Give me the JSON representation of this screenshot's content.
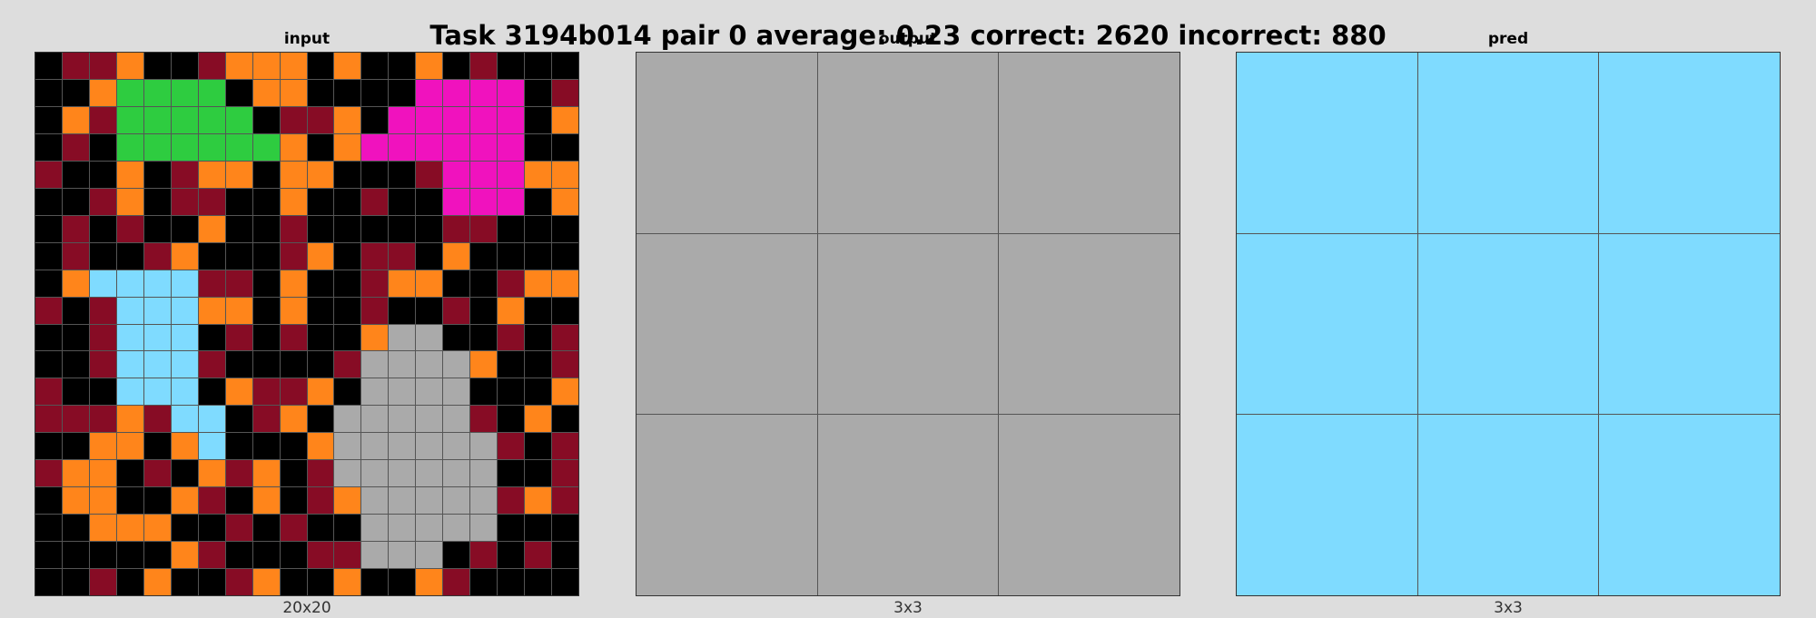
{
  "title": "Task 3194b014 pair 0 average: 0.23 correct: 2620 incorrect: 880",
  "palette": {
    "0": "#000000",
    "1": "#1e93ff",
    "2": "#f93c31",
    "3": "#2ecc40",
    "4": "#ffdc00",
    "5": "#aaaaaa",
    "6": "#f012be",
    "7": "#ff851b",
    "8": "#7fdbff",
    "9": "#870c25"
  },
  "panels": [
    {
      "title": "input",
      "footer": "20x20",
      "rows": 20,
      "cols": 20,
      "grid": [
        [
          0,
          9,
          9,
          7,
          0,
          0,
          9,
          7,
          7,
          7,
          0,
          7,
          0,
          0,
          7,
          0,
          9,
          0,
          0,
          0
        ],
        [
          0,
          0,
          7,
          3,
          3,
          3,
          3,
          0,
          7,
          7,
          0,
          0,
          0,
          0,
          6,
          6,
          6,
          6,
          0,
          9
        ],
        [
          0,
          7,
          9,
          3,
          3,
          3,
          3,
          3,
          0,
          9,
          9,
          7,
          0,
          6,
          6,
          6,
          6,
          6,
          0,
          7
        ],
        [
          0,
          9,
          0,
          3,
          3,
          3,
          3,
          3,
          3,
          7,
          0,
          7,
          6,
          6,
          6,
          6,
          6,
          6,
          0,
          0
        ],
        [
          9,
          0,
          0,
          7,
          0,
          9,
          7,
          7,
          0,
          7,
          7,
          0,
          0,
          0,
          9,
          6,
          6,
          6,
          7,
          7
        ],
        [
          0,
          0,
          9,
          7,
          0,
          9,
          9,
          0,
          0,
          7,
          0,
          0,
          9,
          0,
          0,
          6,
          6,
          6,
          0,
          7
        ],
        [
          0,
          9,
          0,
          9,
          0,
          0,
          7,
          0,
          0,
          9,
          0,
          0,
          0,
          0,
          0,
          9,
          9,
          0,
          0,
          0
        ],
        [
          0,
          9,
          0,
          0,
          9,
          7,
          0,
          0,
          0,
          9,
          7,
          0,
          9,
          9,
          0,
          7,
          0,
          0,
          0,
          0
        ],
        [
          0,
          7,
          8,
          8,
          8,
          8,
          9,
          9,
          0,
          7,
          0,
          0,
          9,
          7,
          7,
          0,
          0,
          9,
          7,
          7
        ],
        [
          9,
          0,
          9,
          8,
          8,
          8,
          7,
          7,
          0,
          7,
          0,
          0,
          9,
          0,
          0,
          9,
          0,
          7,
          0,
          0
        ],
        [
          0,
          0,
          9,
          8,
          8,
          8,
          0,
          9,
          0,
          9,
          0,
          0,
          7,
          5,
          5,
          0,
          0,
          9,
          0,
          9
        ],
        [
          0,
          0,
          9,
          8,
          8,
          8,
          9,
          0,
          0,
          0,
          0,
          9,
          5,
          5,
          5,
          5,
          7,
          0,
          0,
          9
        ],
        [
          9,
          0,
          0,
          8,
          8,
          8,
          0,
          7,
          9,
          9,
          7,
          0,
          5,
          5,
          5,
          5,
          0,
          0,
          0,
          7
        ],
        [
          9,
          9,
          9,
          7,
          9,
          8,
          8,
          0,
          9,
          7,
          0,
          5,
          5,
          5,
          5,
          5,
          9,
          0,
          7,
          0
        ],
        [
          0,
          0,
          7,
          7,
          0,
          7,
          8,
          0,
          0,
          0,
          7,
          5,
          5,
          5,
          5,
          5,
          5,
          9,
          0,
          9
        ],
        [
          9,
          7,
          7,
          0,
          9,
          0,
          7,
          9,
          7,
          0,
          9,
          5,
          5,
          5,
          5,
          5,
          5,
          0,
          0,
          9
        ],
        [
          0,
          7,
          7,
          0,
          0,
          7,
          9,
          0,
          7,
          0,
          9,
          7,
          5,
          5,
          5,
          5,
          5,
          9,
          7,
          9
        ],
        [
          0,
          0,
          7,
          7,
          7,
          0,
          0,
          9,
          0,
          9,
          0,
          0,
          5,
          5,
          5,
          5,
          5,
          0,
          0,
          0
        ],
        [
          0,
          0,
          0,
          0,
          0,
          7,
          9,
          0,
          0,
          0,
          9,
          9,
          5,
          5,
          5,
          0,
          9,
          0,
          9,
          0
        ],
        [
          0,
          0,
          9,
          0,
          7,
          0,
          0,
          9,
          7,
          0,
          0,
          7,
          0,
          0,
          7,
          9,
          0,
          0,
          0,
          0
        ]
      ]
    },
    {
      "title": "output",
      "footer": "3x3",
      "rows": 3,
      "cols": 3,
      "grid": [
        [
          5,
          5,
          5
        ],
        [
          5,
          5,
          5
        ],
        [
          5,
          5,
          5
        ]
      ]
    },
    {
      "title": "pred",
      "footer": "3x3",
      "rows": 3,
      "cols": 3,
      "grid": [
        [
          8,
          8,
          8
        ],
        [
          8,
          8,
          8
        ],
        [
          8,
          8,
          8
        ]
      ]
    }
  ]
}
